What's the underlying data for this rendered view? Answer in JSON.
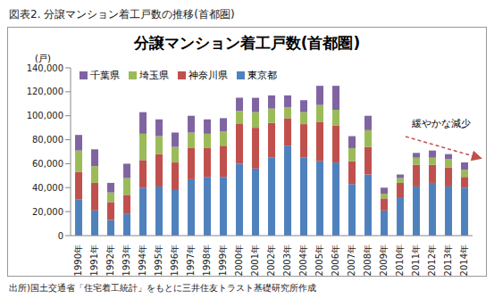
{
  "chart_data": {
    "type": "bar",
    "title": "分譲マンション着工戸数(首都圏)",
    "subtitle": "図表2. 分譲マンション着工戸数の推移(首都圏)",
    "y_label": "(戸)",
    "annotations": [
      "緩やかな減少",
      "出所)国土交通省「住宅着工統計」をもとに三井住友トラスト基礎研究所作成"
    ],
    "categories": [
      "1990年",
      "1991年",
      "1992年",
      "1993年",
      "1994年",
      "1995年",
      "1996年",
      "1997年",
      "1998年",
      "1999年",
      "2000年",
      "2001年",
      "2002年",
      "2003年",
      "2004年",
      "2005年",
      "2006年",
      "2007年",
      "2008年",
      "2009年",
      "2010年",
      "2011年",
      "2012年",
      "2013年",
      "2014年"
    ],
    "series": [
      {
        "name": "東京都",
        "color": "#4f81bd",
        "values": [
          30000,
          21000,
          13000,
          18000,
          40000,
          41000,
          38000,
          47000,
          49000,
          49000,
          60000,
          56000,
          65000,
          75000,
          65000,
          62000,
          61000,
          43000,
          51000,
          21000,
          32000,
          41000,
          44000,
          41000,
          40000
        ]
      },
      {
        "name": "神奈川県",
        "color": "#c0504d",
        "values": [
          23000,
          23000,
          15000,
          16000,
          23000,
          27000,
          23000,
          26000,
          24000,
          26000,
          33000,
          34000,
          29000,
          23000,
          28000,
          33000,
          31000,
          19000,
          23000,
          10000,
          12000,
          18000,
          15000,
          16000,
          9000
        ]
      },
      {
        "name": "埼玉県",
        "color": "#9bbb59",
        "values": [
          18000,
          14000,
          8000,
          14000,
          22000,
          15000,
          13000,
          13000,
          12000,
          12000,
          11000,
          13000,
          12000,
          9000,
          10000,
          14000,
          13000,
          11000,
          14000,
          4000,
          4000,
          6000,
          6000,
          7000,
          6000
        ]
      },
      {
        "name": "千葉県",
        "color": "#8064a2",
        "values": [
          13000,
          14000,
          8000,
          12000,
          18000,
          14000,
          12000,
          14000,
          12000,
          11000,
          11000,
          12000,
          11000,
          10000,
          10000,
          16000,
          20000,
          10000,
          12000,
          5000,
          3000,
          4000,
          6000,
          4000,
          6000
        ]
      }
    ],
    "ylim": [
      0,
      140000
    ],
    "yticks": [
      {
        "value": 0,
        "label": "0"
      },
      {
        "value": 20000,
        "label": "20,000"
      },
      {
        "value": 40000,
        "label": "40,000"
      },
      {
        "value": 60000,
        "label": "60,000"
      },
      {
        "value": 80000,
        "label": "80,000"
      },
      {
        "value": 100000,
        "label": "100,000"
      },
      {
        "value": 120000,
        "label": "120,000"
      },
      {
        "value": 140000,
        "label": "140,000"
      }
    ],
    "stacked": true,
    "grid": false,
    "legend": "top-left"
  }
}
